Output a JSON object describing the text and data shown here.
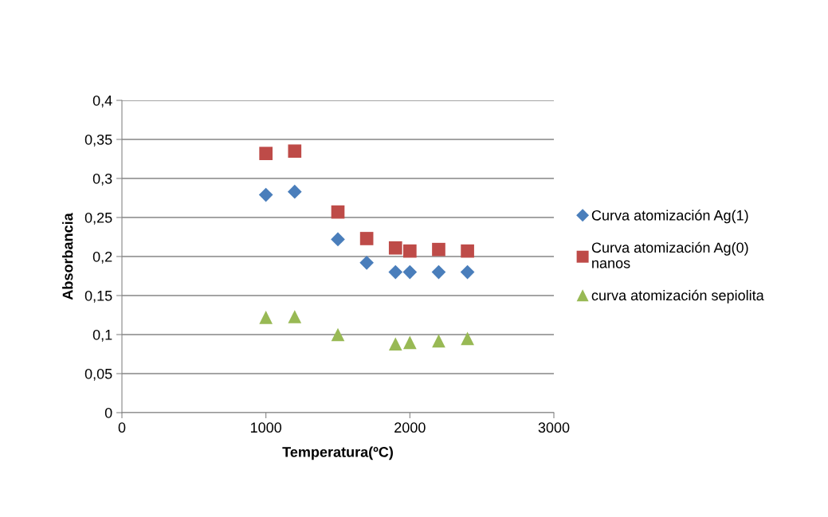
{
  "chart_data": {
    "type": "scatter",
    "xlabel": "Temperatura(ºC)",
    "ylabel": "Absorbancia",
    "xlim": [
      0,
      3000
    ],
    "xticks": [
      0,
      1000,
      2000,
      3000
    ],
    "ylim": [
      0,
      0.4
    ],
    "yticks": [
      {
        "value": 0,
        "label": "0"
      },
      {
        "value": 0.05,
        "label": "0,05"
      },
      {
        "value": 0.1,
        "label": "0,1"
      },
      {
        "value": 0.15,
        "label": "0,15"
      },
      {
        "value": 0.2,
        "label": "0,2"
      },
      {
        "value": 0.25,
        "label": "0,25"
      },
      {
        "value": 0.3,
        "label": "0,3"
      },
      {
        "value": 0.35,
        "label": "0,35"
      },
      {
        "value": 0.4,
        "label": "0,4"
      }
    ],
    "grid": "y",
    "legend": "right",
    "x": [
      1000,
      1200,
      1500,
      1700,
      1900,
      2000,
      2200,
      2400
    ],
    "series": [
      {
        "name": "Curva atomización Ag(1)",
        "color": "#4a7ebb",
        "marker": "diamond",
        "values": [
          0.279,
          0.283,
          0.222,
          0.192,
          0.18,
          0.18,
          0.18,
          0.18
        ]
      },
      {
        "name": "Curva atomización Ag(0) nanos",
        "color": "#be4b48",
        "marker": "square",
        "values": [
          0.332,
          0.335,
          0.257,
          0.223,
          0.211,
          0.207,
          0.209,
          0.207
        ]
      },
      {
        "name": "curva atomización sepiolita",
        "color": "#98b954",
        "marker": "triangle",
        "x": [
          1000,
          1200,
          1500,
          1900,
          2000,
          2200,
          2400
        ],
        "values": [
          0.122,
          0.123,
          0.1,
          0.088,
          0.09,
          0.092,
          0.095
        ]
      }
    ]
  }
}
